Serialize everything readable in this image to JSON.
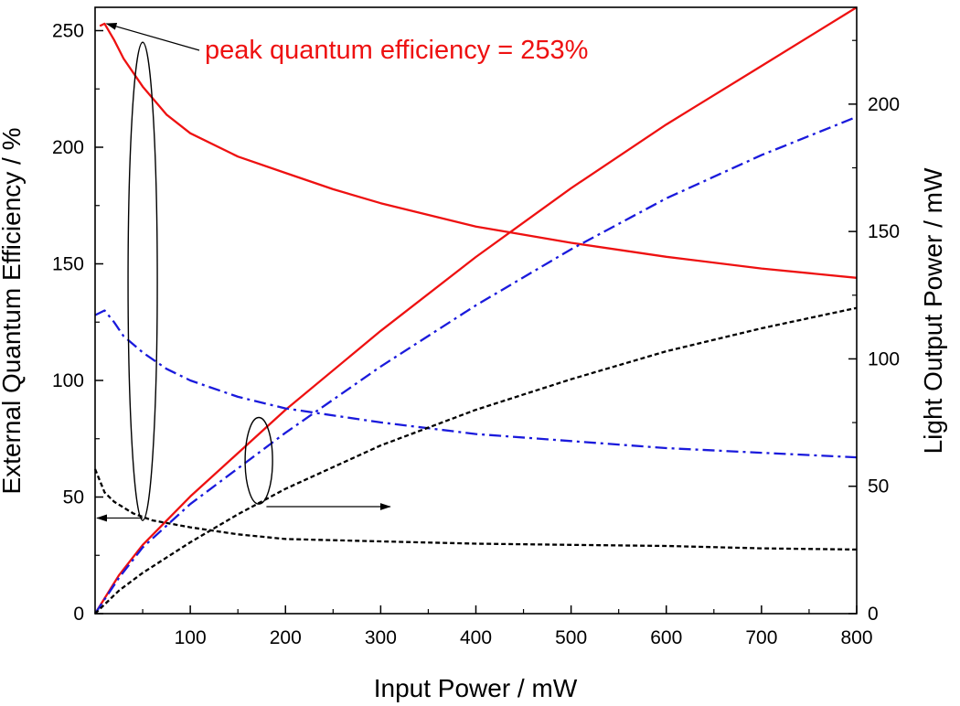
{
  "chart_data": {
    "type": "line",
    "title": "",
    "xlabel": "Input Power / mW",
    "ylabel_left": "External Quantum Efficiency / %",
    "ylabel_right": "Light Output Power / mW",
    "xlim": [
      0,
      800
    ],
    "ylim_left": [
      0,
      260
    ],
    "ylim_right": [
      0,
      238
    ],
    "x_ticks": [
      100,
      200,
      300,
      400,
      500,
      600,
      700,
      800
    ],
    "y_left_ticks": [
      0,
      50,
      100,
      150,
      200,
      250
    ],
    "y_right_ticks": [
      0,
      50,
      100,
      150,
      200
    ],
    "grid": false,
    "annotation": {
      "text": "peak quantum efficiency = 253%",
      "color": "#ee1111"
    },
    "series": [
      {
        "axis": "left",
        "color": "#ee1111",
        "style": "solid",
        "x": [
          5,
          10,
          20,
          30,
          50,
          75,
          100,
          150,
          200,
          250,
          300,
          400,
          500,
          600,
          700,
          800
        ],
        "y": [
          252,
          253,
          246,
          238,
          226,
          214,
          206,
          196,
          189,
          182,
          176,
          166,
          159,
          153,
          148,
          144
        ]
      },
      {
        "axis": "right",
        "color": "#ee1111",
        "style": "solid",
        "x": [
          0,
          25,
          50,
          100,
          150,
          200,
          300,
          400,
          500,
          600,
          700,
          800
        ],
        "y": [
          0,
          15,
          27,
          46,
          63,
          80,
          111,
          140,
          167,
          192,
          215,
          238
        ]
      },
      {
        "axis": "left",
        "color": "#1a1adc",
        "style": "dashdot",
        "x": [
          0,
          10,
          20,
          30,
          50,
          75,
          100,
          150,
          200,
          300,
          400,
          500,
          600,
          700,
          800
        ],
        "y": [
          128,
          130,
          125,
          119,
          112,
          105,
          100,
          93,
          88,
          82,
          77,
          74,
          71,
          69,
          67
        ]
      },
      {
        "axis": "right",
        "color": "#1a1adc",
        "style": "dashdot",
        "x": [
          0,
          25,
          50,
          100,
          150,
          200,
          300,
          400,
          500,
          600,
          700,
          800
        ],
        "y": [
          0,
          14,
          26,
          43,
          57,
          71,
          97,
          121,
          143,
          163,
          180,
          195
        ]
      },
      {
        "axis": "left",
        "color": "#000000",
        "style": "dotted",
        "x": [
          0,
          10,
          20,
          40,
          60,
          100,
          150,
          200,
          300,
          400,
          500,
          600,
          700,
          800
        ],
        "y": [
          62,
          52,
          48,
          43,
          40,
          37,
          34,
          32,
          31,
          30,
          29.5,
          29,
          28,
          27.5
        ]
      },
      {
        "axis": "right",
        "color": "#000000",
        "style": "dotted",
        "x": [
          0,
          25,
          50,
          100,
          150,
          200,
          300,
          400,
          500,
          600,
          700,
          800
        ],
        "y": [
          0,
          9,
          16,
          28,
          39,
          49,
          66,
          80,
          92,
          103,
          112,
          120
        ]
      }
    ]
  }
}
